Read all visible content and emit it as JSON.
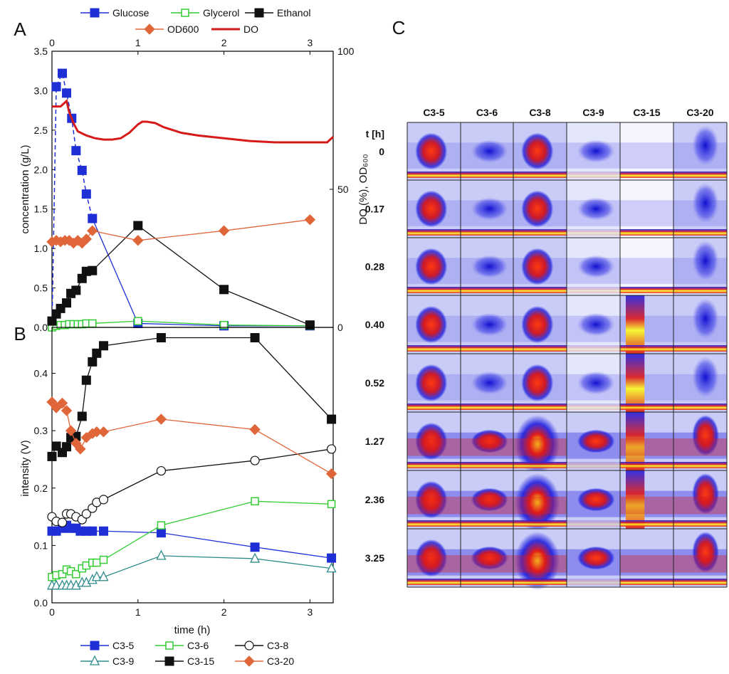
{
  "chart_data": [
    {
      "panel": "A",
      "type": "line",
      "xlabel": "",
      "ylabel": "concentration (g/L)",
      "y2label": "DO (%), OD600",
      "xlim": [
        0,
        3.27
      ],
      "ylim": [
        0,
        3.5
      ],
      "y2lim": [
        0,
        100
      ],
      "x_ticks": [
        "0",
        "1",
        "2",
        "3"
      ],
      "y_ticks": [
        "0.0",
        "0.5",
        "1.0",
        "1.5",
        "2.0",
        "2.5",
        "3.0",
        "3.5"
      ],
      "y2_ticks": [
        "0",
        "50",
        "100"
      ],
      "legend": [
        "Glucose",
        "Glycerol",
        "Ethanol",
        "OD600",
        "DO"
      ],
      "series": [
        {
          "name": "Glucose",
          "axis": "left",
          "color": "#1f2fd6",
          "marker": "square-filled",
          "dashed_segment": true,
          "x": [
            0,
            0.05,
            0.12,
            0.17,
            0.23,
            0.28,
            0.35,
            0.4,
            0.47,
            1.0,
            2.0,
            3.0
          ],
          "y": [
            0.0,
            3.05,
            3.22,
            2.97,
            2.65,
            2.24,
            1.99,
            1.69,
            1.38,
            0.05,
            0.02,
            0.02
          ]
        },
        {
          "name": "Glycerol",
          "axis": "left",
          "color": "#33cc33",
          "marker": "square-open",
          "x": [
            0,
            0.05,
            0.1,
            0.15,
            0.2,
            0.25,
            0.3,
            0.35,
            0.4,
            0.47,
            1.0,
            2.0,
            3.0
          ],
          "y": [
            0.0,
            0.02,
            0.03,
            0.03,
            0.04,
            0.04,
            0.04,
            0.04,
            0.05,
            0.05,
            0.08,
            0.03,
            0.02
          ]
        },
        {
          "name": "Ethanol",
          "axis": "left",
          "color": "#111111",
          "marker": "square-filled",
          "x": [
            0,
            0.05,
            0.1,
            0.17,
            0.22,
            0.28,
            0.35,
            0.4,
            0.47,
            1.0,
            2.0,
            3.0
          ],
          "y": [
            0.08,
            0.17,
            0.24,
            0.31,
            0.43,
            0.47,
            0.62,
            0.71,
            0.72,
            1.29,
            0.48,
            0.03
          ]
        },
        {
          "name": "OD600",
          "axis": "right",
          "color": "#e0663a",
          "marker": "diamond-filled",
          "x": [
            0,
            0.05,
            0.1,
            0.15,
            0.2,
            0.25,
            0.3,
            0.35,
            0.4,
            0.47,
            1.0,
            2.0,
            3.0
          ],
          "y": [
            31,
            31.5,
            31,
            31.5,
            31.5,
            30.5,
            31.5,
            30.5,
            32,
            35,
            31.5,
            35,
            39
          ]
        },
        {
          "name": "DO",
          "axis": "right",
          "color": "#d61a1a",
          "marker": "none",
          "x": [
            0,
            0.1,
            0.17,
            0.2,
            0.25,
            0.3,
            0.4,
            0.5,
            0.6,
            0.7,
            0.8,
            0.9,
            1.0,
            1.05,
            1.1,
            1.2,
            1.3,
            1.5,
            1.7,
            2.0,
            2.3,
            2.6,
            3.0,
            3.2,
            3.27
          ],
          "y": [
            80,
            80,
            82,
            78,
            74,
            71,
            69.5,
            68.5,
            68,
            68,
            68.5,
            70.5,
            73.5,
            74.5,
            74.5,
            74,
            72.5,
            70.5,
            69.5,
            68.5,
            67.5,
            67,
            67,
            67,
            69
          ]
        }
      ]
    },
    {
      "panel": "B",
      "type": "line",
      "xlabel": "time (h)",
      "ylabel": "intensity (V)",
      "xlim": [
        0,
        3.27
      ],
      "ylim": [
        0,
        0.48
      ],
      "x_ticks": [
        "0",
        "1",
        "2",
        "3"
      ],
      "y_ticks": [
        "0.0",
        "0.1",
        "0.2",
        "0.3",
        "0.4"
      ],
      "legend": [
        "C3-5",
        "C3-6",
        "C3-8",
        "C3-9",
        "C3-15",
        "C3-20"
      ],
      "series": [
        {
          "name": "C3-5",
          "color": "#1f2fd6",
          "marker": "square-filled",
          "x": [
            0,
            0.05,
            0.12,
            0.17,
            0.22,
            0.28,
            0.33,
            0.4,
            0.47,
            0.6,
            1.27,
            2.36,
            3.25
          ],
          "y": [
            0.125,
            0.125,
            0.13,
            0.135,
            0.13,
            0.13,
            0.125,
            0.125,
            0.125,
            0.125,
            0.122,
            0.097,
            0.078
          ]
        },
        {
          "name": "C3-6",
          "color": "#33cc33",
          "marker": "square-open",
          "x": [
            0,
            0.05,
            0.12,
            0.17,
            0.22,
            0.28,
            0.35,
            0.4,
            0.47,
            0.52,
            0.6,
            1.27,
            2.36,
            3.25
          ],
          "y": [
            0.045,
            0.048,
            0.05,
            0.058,
            0.055,
            0.05,
            0.06,
            0.065,
            0.07,
            0.07,
            0.075,
            0.135,
            0.177,
            0.172
          ]
        },
        {
          "name": "C3-8",
          "color": "#111111",
          "marker": "circle-open",
          "x": [
            0,
            0.05,
            0.12,
            0.17,
            0.22,
            0.28,
            0.35,
            0.4,
            0.47,
            0.52,
            0.6,
            1.27,
            2.36,
            3.25
          ],
          "y": [
            0.15,
            0.142,
            0.14,
            0.155,
            0.155,
            0.15,
            0.145,
            0.155,
            0.165,
            0.175,
            0.18,
            0.23,
            0.248,
            0.268
          ]
        },
        {
          "name": "C3-9",
          "color": "#2e8b8b",
          "marker": "triangle-open",
          "x": [
            0,
            0.05,
            0.12,
            0.17,
            0.22,
            0.28,
            0.35,
            0.4,
            0.47,
            0.52,
            0.6,
            1.27,
            2.36,
            3.25
          ],
          "y": [
            0.03,
            0.03,
            0.03,
            0.03,
            0.03,
            0.03,
            0.035,
            0.035,
            0.04,
            0.045,
            0.045,
            0.082,
            0.077,
            0.06
          ]
        },
        {
          "name": "C3-15",
          "color": "#111111",
          "marker": "square-filled",
          "x": [
            0,
            0.05,
            0.12,
            0.17,
            0.22,
            0.28,
            0.35,
            0.4,
            0.47,
            0.52,
            0.6,
            1.27,
            2.36,
            3.25
          ],
          "y": [
            0.255,
            0.273,
            0.262,
            0.272,
            0.288,
            0.29,
            0.325,
            0.388,
            0.42,
            0.435,
            0.448,
            0.462,
            0.462,
            0.32
          ]
        },
        {
          "name": "C3-20",
          "color": "#e0663a",
          "marker": "diamond-filled",
          "x": [
            0,
            0.05,
            0.12,
            0.17,
            0.22,
            0.28,
            0.33,
            0.4,
            0.47,
            0.52,
            0.6,
            1.27,
            2.36,
            3.25
          ],
          "y": [
            0.35,
            0.34,
            0.348,
            0.335,
            0.3,
            0.278,
            0.268,
            0.288,
            0.295,
            0.298,
            0.298,
            0.32,
            0.302,
            0.225
          ]
        }
      ]
    },
    {
      "panel": "C",
      "type": "heatmap",
      "columns": [
        "C3-5",
        "C3-6",
        "C3-8",
        "C3-9",
        "C3-15",
        "C3-20"
      ],
      "row_header": "t [h]",
      "rows": [
        "0",
        "0.17",
        "0.28",
        "0.40",
        "0.52",
        "1.27",
        "2.36",
        "3.25"
      ],
      "colormap": [
        "#ffffff",
        "#1a1ae6",
        "#d92020",
        "#ffff1a"
      ]
    }
  ]
}
